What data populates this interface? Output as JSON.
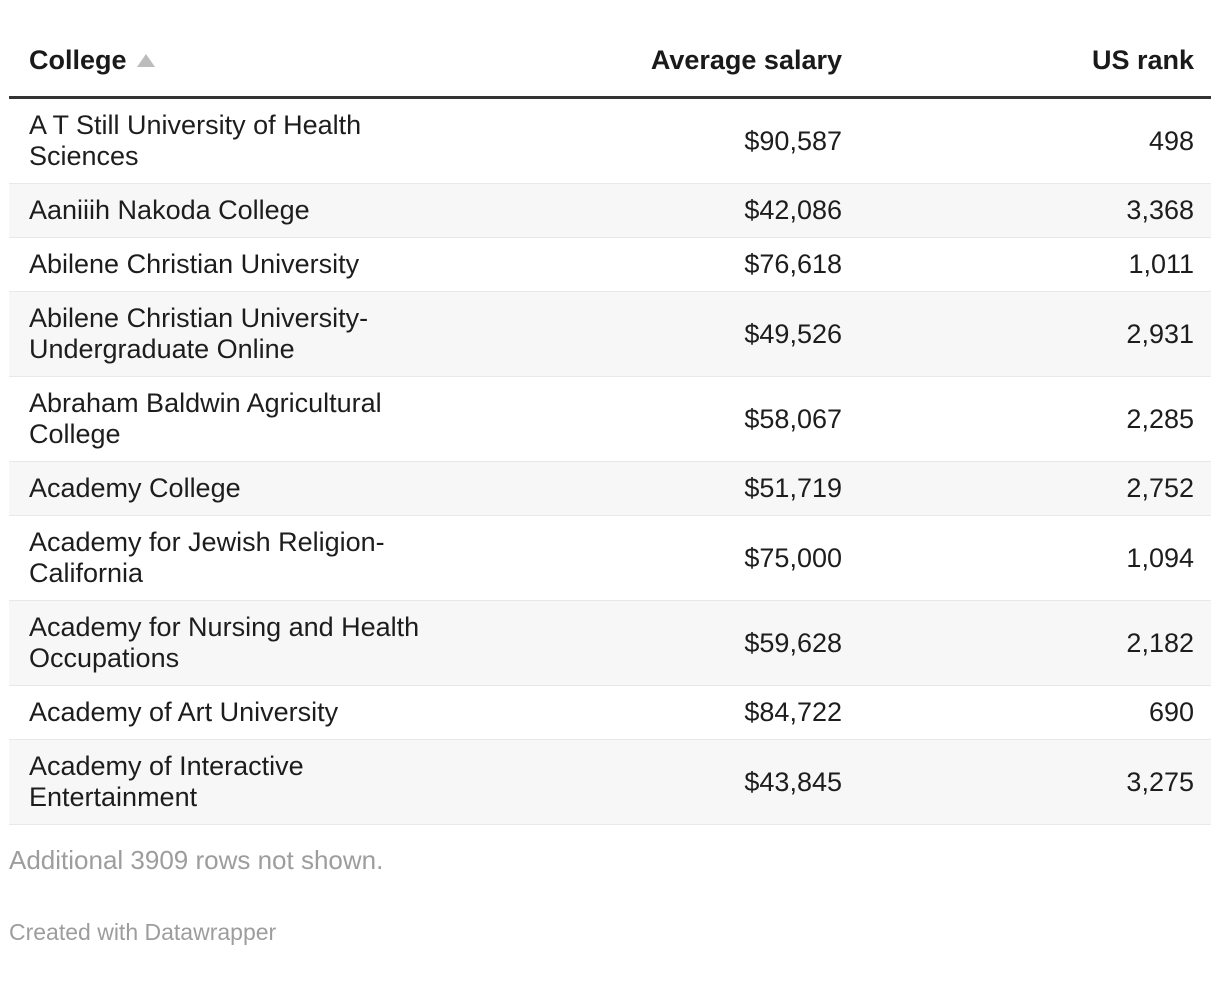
{
  "chart_data": {
    "type": "table",
    "columns": [
      {
        "key": "college",
        "label": "College",
        "sorted": "ascending"
      },
      {
        "key": "salary",
        "label": "Average salary"
      },
      {
        "key": "rank",
        "label": "US rank"
      }
    ],
    "rows": [
      {
        "college": "A T Still University of Health Sciences",
        "salary": "$90,587",
        "rank": "498"
      },
      {
        "college": "Aaniiih Nakoda College",
        "salary": "$42,086",
        "rank": "3,368"
      },
      {
        "college": "Abilene Christian University",
        "salary": "$76,618",
        "rank": "1,011"
      },
      {
        "college": "Abilene Christian University-Undergraduate Online",
        "salary": "$49,526",
        "rank": "2,931"
      },
      {
        "college": "Abraham Baldwin Agricultural College",
        "salary": "$58,067",
        "rank": "2,285"
      },
      {
        "college": "Academy College",
        "salary": "$51,719",
        "rank": "2,752"
      },
      {
        "college": "Academy for Jewish Religion-California",
        "salary": "$75,000",
        "rank": "1,094"
      },
      {
        "college": "Academy for Nursing and Health Occupations",
        "salary": "$59,628",
        "rank": "2,182"
      },
      {
        "college": "Academy of Art University",
        "salary": "$84,722",
        "rank": "690"
      },
      {
        "college": "Academy of Interactive Entertainment",
        "salary": "$43,845",
        "rank": "3,275"
      }
    ]
  },
  "icons": {
    "sort_ascending": "▲"
  },
  "footer": {
    "note": "Additional 3909 rows not shown.",
    "credit": "Created with Datawrapper"
  },
  "colors": {
    "text": "#1d1d1d",
    "muted_text": "#9d9d9d",
    "header_rule": "#333333",
    "row_divider": "#e8e8e8",
    "alt_row_bg": "#f7f7f7",
    "sort_icon": "#bcbcbc"
  }
}
